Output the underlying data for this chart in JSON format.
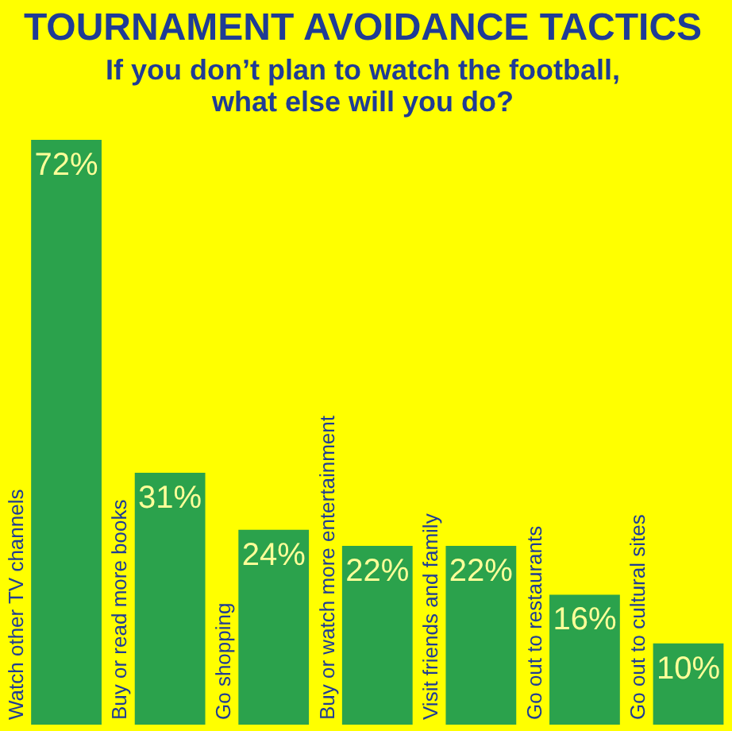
{
  "chart_data": {
    "type": "bar",
    "title": "TOURNAMENT AVOIDANCE TACTICS",
    "subtitle": "If you don’t plan to watch the football, what else will you do?",
    "categories": [
      "Watch other TV channels",
      "Buy or read more books",
      "Go shopping",
      "Buy or watch more entertainment",
      "Visit friends and family",
      "Go out to restaurants",
      "Go out to cultural sites"
    ],
    "values": [
      72,
      31,
      24,
      22,
      22,
      16,
      10
    ],
    "value_labels": [
      "72%",
      "31%",
      "24%",
      "22%",
      "22%",
      "16%",
      "10%"
    ],
    "color": "#2ba24c"
  }
}
